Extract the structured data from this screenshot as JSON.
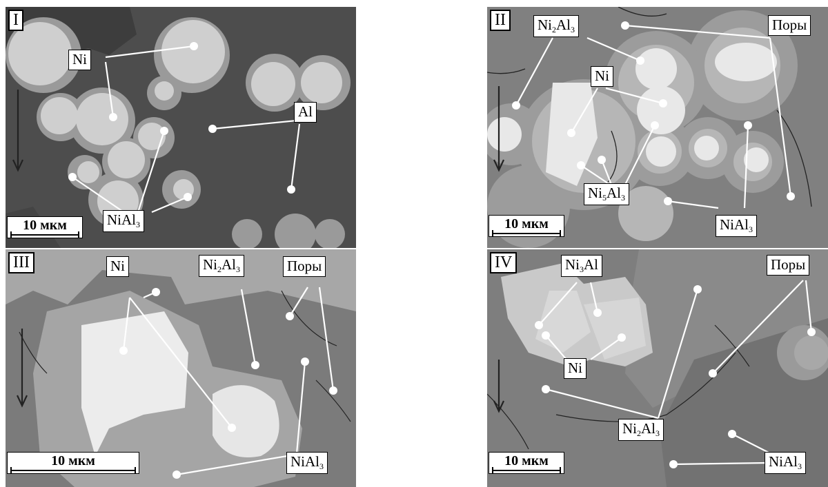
{
  "panels": {
    "p1": {
      "roman": "I",
      "scale": "10 мкм",
      "labels": {
        "ni": "Ni",
        "al": "Al",
        "nial3_base": "NiAl",
        "nial3_sub": "3"
      }
    },
    "p2": {
      "roman": "II",
      "scale": "10 мкм",
      "labels": {
        "ni2al3_a": "Ni",
        "ni2al3_b": "2",
        "ni2al3_c": "Al",
        "ni2al3_d": "3",
        "pores": "Поры",
        "ni": "Ni",
        "ni5al3_a": "Ni",
        "ni5al3_b": "5",
        "ni5al3_c": "Al",
        "ni5al3_d": "3",
        "nial3_base": "NiAl",
        "nial3_sub": "3"
      }
    },
    "p3": {
      "roman": "III",
      "scale": "10 мкм",
      "labels": {
        "ni": "Ni",
        "ni2al3_a": "Ni",
        "ni2al3_b": "2",
        "ni2al3_c": "Al",
        "ni2al3_d": "3",
        "pores": "Поры",
        "nial3_base": "NiAl",
        "nial3_sub": "3"
      }
    },
    "p4": {
      "roman": "IV",
      "scale": "10 мкм",
      "labels": {
        "ni3al_a": "Ni",
        "ni3al_b": "3",
        "ni3al_c": "Al",
        "pores": "Поры",
        "ni": "Ni",
        "ni2al3_a": "Ni",
        "ni2al3_b": "2",
        "ni2al3_c": "Al",
        "ni2al3_d": "3",
        "nial3_base": "NiAl",
        "nial3_sub": "3"
      }
    }
  }
}
